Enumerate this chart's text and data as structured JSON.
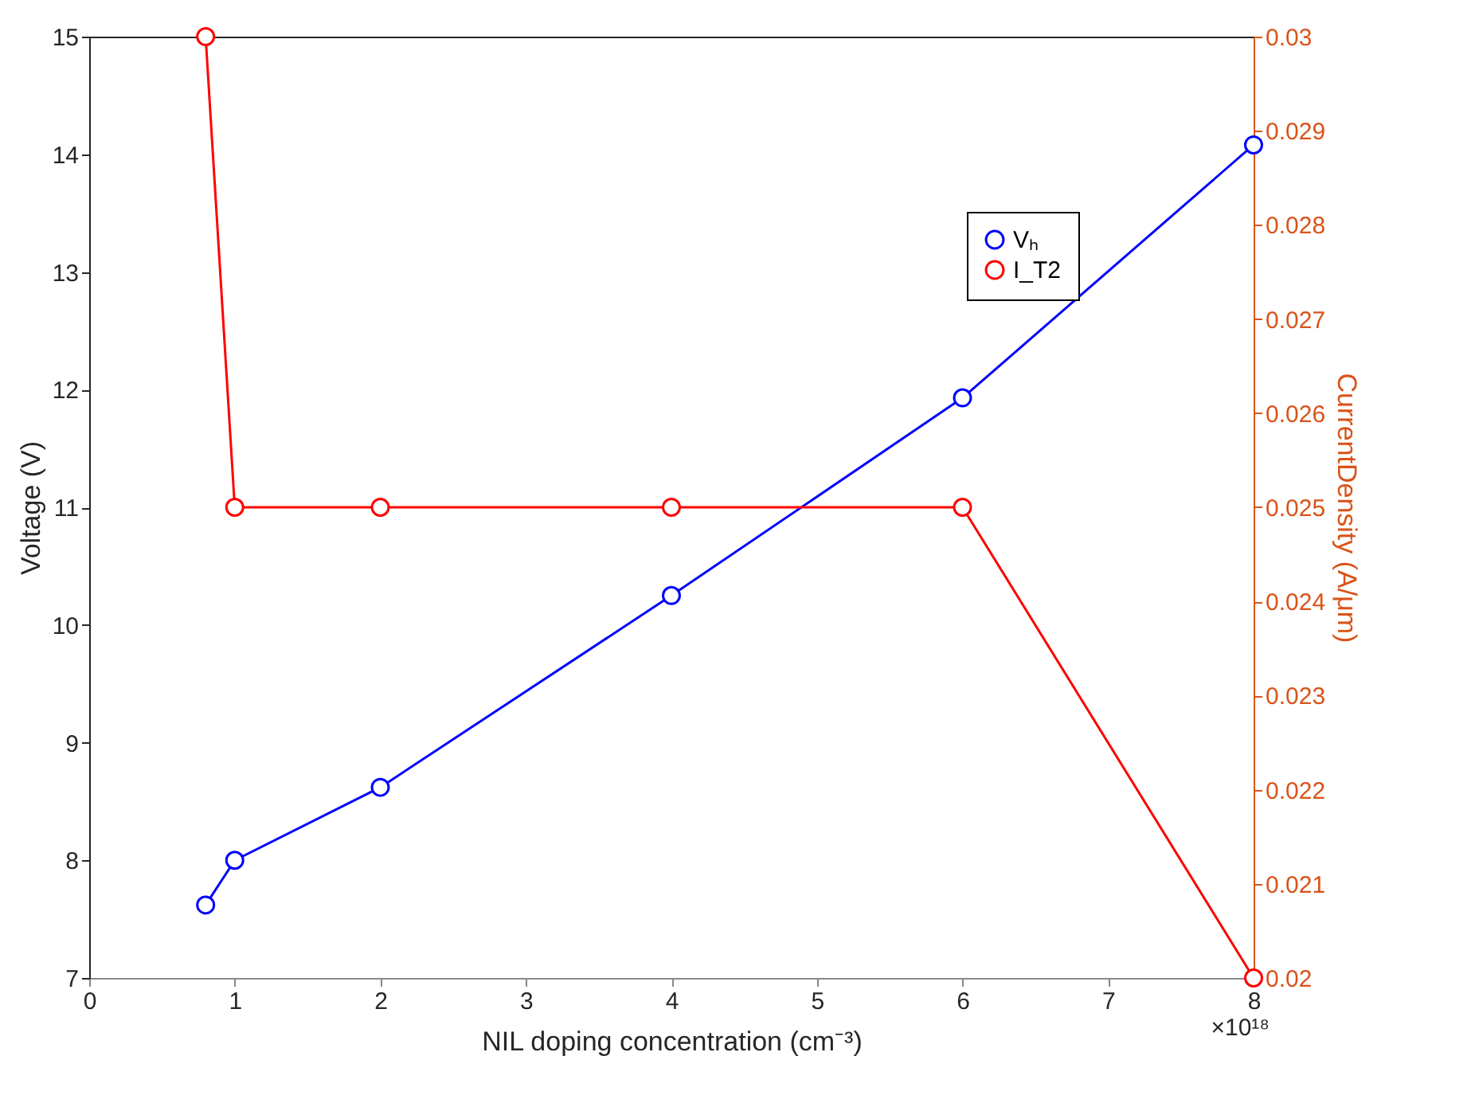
{
  "chart_data": {
    "type": "line",
    "xlabel": "NIL doping concentration (cm⁻³)",
    "ylabel": "Voltage (V)",
    "y2label": "CurrentDensity (A/μm)",
    "x": [
      0.8,
      1,
      2,
      4,
      6,
      8
    ],
    "series": [
      {
        "name": "Vₕ",
        "color": "#0000ff",
        "values": [
          7.62,
          8.0,
          8.62,
          10.25,
          11.93,
          14.08
        ]
      },
      {
        "name": "I_T2",
        "color": "#ff0000",
        "axis": "y2",
        "values": [
          0.03,
          0.025,
          0.025,
          0.025,
          0.025,
          0.02
        ]
      }
    ],
    "xlim": [
      0,
      8
    ],
    "xticks": [
      0,
      1,
      2,
      3,
      4,
      5,
      6,
      7,
      8
    ],
    "ylim": [
      7,
      15
    ],
    "yticks": [
      7,
      8,
      9,
      10,
      11,
      12,
      13,
      14,
      15
    ],
    "y2lim": [
      0.02,
      0.03
    ],
    "y2ticks": [
      0.02,
      0.021,
      0.022,
      0.023,
      0.024,
      0.025,
      0.026,
      0.027,
      0.028,
      0.029,
      0.03
    ],
    "annotations": [
      "×10¹⁸"
    ],
    "marker": "circle",
    "line_style": "solid",
    "legend": "top right"
  }
}
